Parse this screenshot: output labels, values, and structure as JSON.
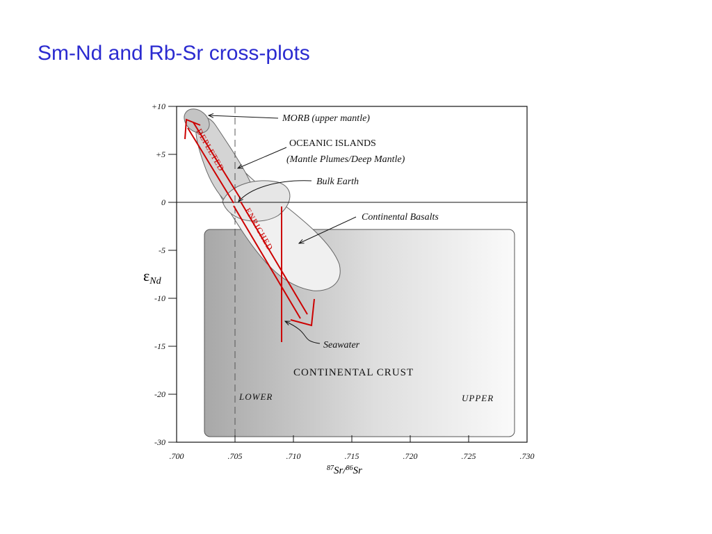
{
  "title": "Sm-Nd and Rb-Sr cross-plots",
  "y_axis": {
    "ticks": [
      "+10",
      "+5",
      "0",
      "-5",
      "-10",
      "-15",
      "-20",
      "-30"
    ],
    "label": {
      "symbol": "ε",
      "subscript": "Nd"
    }
  },
  "x_axis": {
    "ticks": [
      ".700",
      ".705",
      ".710",
      ".715",
      ".720",
      ".725",
      ".730"
    ],
    "label": {
      "sup1": "87",
      "text1": "Sr/",
      "sup2": "86",
      "text2": "Sr"
    }
  },
  "annotations": {
    "morb": "MORB (upper mantle)",
    "oceanic_islands": "OCEANIC ISLANDS",
    "oceanic_islands_sub": "(Mantle Plumes/Deep Mantle)",
    "bulk_earth": "Bulk Earth",
    "continental_basalts": "Continental Basalts",
    "seawater": "Seawater",
    "continental_crust": "CONTINENTAL CRUST",
    "lower": "LOWER",
    "upper": "UPPER",
    "depleted": "DEPLETED",
    "enriched": "ENRICHED"
  }
}
